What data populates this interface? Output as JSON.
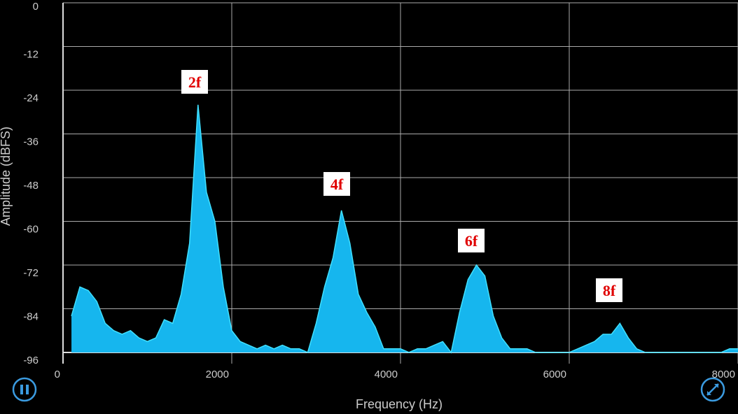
{
  "chart_data": {
    "type": "area",
    "x_label": "Frequency (Hz)",
    "y_label": "Amplitude (dBFS)",
    "x": [
      100,
      200,
      300,
      400,
      500,
      600,
      700,
      800,
      900,
      1000,
      1100,
      1200,
      1300,
      1400,
      1500,
      1600,
      1700,
      1800,
      1900,
      2000,
      2100,
      2200,
      2300,
      2400,
      2500,
      2600,
      2700,
      2800,
      2900,
      3000,
      3100,
      3200,
      3300,
      3400,
      3500,
      3600,
      3700,
      3800,
      3900,
      4000,
      4100,
      4200,
      4300,
      4400,
      4500,
      4600,
      4700,
      4800,
      4900,
      5000,
      5100,
      5200,
      5300,
      5400,
      5500,
      5600,
      5700,
      5800,
      5900,
      6000,
      6100,
      6200,
      6300,
      6400,
      6500,
      6600,
      6700,
      6800,
      6900,
      7000,
      7100,
      7200,
      7300,
      7400,
      7500,
      7600,
      7700,
      7800,
      7900,
      8000
    ],
    "values": [
      -86,
      -78,
      -79,
      -82,
      -88,
      -90,
      -91,
      -90,
      -92,
      -93,
      -92,
      -87,
      -88,
      -80,
      -66,
      -28,
      -52,
      -60,
      -78,
      -90,
      -93,
      -94,
      -95,
      -94,
      -95,
      -94,
      -95,
      -95,
      -96,
      -88,
      -78,
      -70,
      -57,
      -66,
      -80,
      -85,
      -89,
      -95,
      -95,
      -95,
      -96,
      -95,
      -95,
      -94,
      -93,
      -96,
      -85,
      -76,
      -72,
      -75,
      -86,
      -92,
      -95,
      -95,
      -95,
      -96,
      -96,
      -96,
      -96,
      -96,
      -95,
      -94,
      -93,
      -91,
      -91,
      -88,
      -92,
      -95,
      -96,
      -96,
      -96,
      -96,
      -96,
      -96,
      -96,
      -96,
      -96,
      -96,
      -95,
      -95
    ],
    "color": "#16b6ee",
    "line_color": "#3fe0ff",
    "xlim": [
      0,
      8000
    ],
    "xticks": [
      0,
      2000,
      4000,
      6000,
      8000
    ],
    "ylim": [
      -96,
      0
    ],
    "yticks": [
      0,
      -12,
      -24,
      -36,
      -48,
      -60,
      -72,
      -84,
      -96
    ],
    "grid": true,
    "annotations": [
      "2f",
      "4f",
      "6f",
      "8f"
    ]
  }
}
